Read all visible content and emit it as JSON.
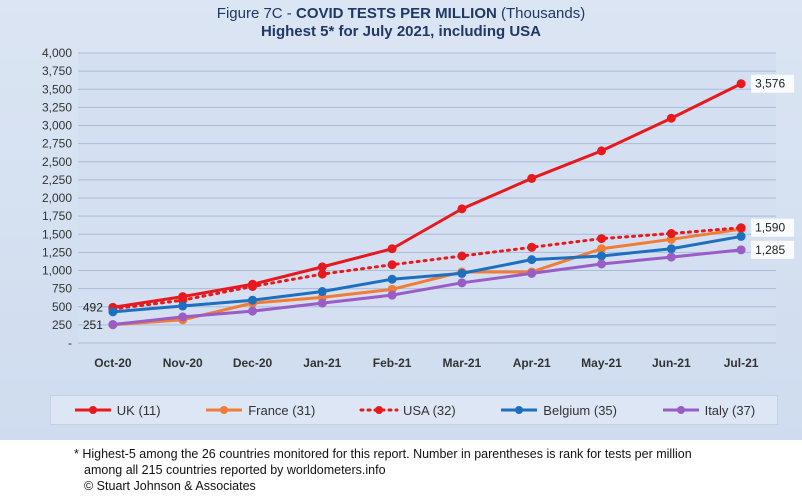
{
  "title": {
    "prefix": "Figure 7C - ",
    "bold": "COVID TESTS PER MILLION",
    "suffix": " (Thousands)",
    "subtitle": "Highest 5* for July 2021, including USA"
  },
  "chart_data": {
    "type": "line",
    "categories": [
      "Oct-20",
      "Nov-20",
      "Dec-20",
      "Jan-21",
      "Feb-21",
      "Mar-21",
      "Apr-21",
      "May-21",
      "Jun-21",
      "Jul-21"
    ],
    "ylim": [
      0,
      4000
    ],
    "yticks": [
      0,
      250,
      500,
      750,
      1000,
      1250,
      1500,
      1750,
      2000,
      2250,
      2500,
      2750,
      3000,
      3250,
      3500,
      3750,
      4000
    ],
    "ytick_labels": [
      "-",
      "250",
      "500",
      "750",
      "1,000",
      "1,250",
      "1,500",
      "1,750",
      "2,000",
      "2,250",
      "2,500",
      "2,750",
      "3,000",
      "3,250",
      "3,500",
      "3,750",
      "4,000"
    ],
    "grid": true,
    "legend_position": "bottom",
    "series": [
      {
        "name": "UK (11)",
        "color": "#e8191c",
        "dash": "solid",
        "values": [
          492,
          640,
          810,
          1050,
          1300,
          1850,
          2270,
          2650,
          3100,
          3576
        ]
      },
      {
        "name": "France (31)",
        "color": "#f07c36",
        "dash": "solid",
        "values": [
          251,
          320,
          550,
          630,
          740,
          980,
          980,
          1300,
          1430,
          1570
        ]
      },
      {
        "name": "USA (32)",
        "color": "#e8191c",
        "dash": "dotted",
        "values": [
          470,
          590,
          780,
          950,
          1080,
          1200,
          1320,
          1440,
          1510,
          1590
        ]
      },
      {
        "name": "Belgium (35)",
        "color": "#1f6fbf",
        "dash": "solid",
        "values": [
          430,
          510,
          590,
          710,
          880,
          960,
          1150,
          1200,
          1300,
          1470
        ]
      },
      {
        "name": "Italy (37)",
        "color": "#9a5cc6",
        "dash": "solid",
        "values": [
          255,
          360,
          440,
          550,
          660,
          830,
          960,
          1090,
          1185,
          1285
        ]
      }
    ],
    "annotations": [
      {
        "text": "492",
        "series": 0,
        "index": 0,
        "side": "left"
      },
      {
        "text": "251",
        "series": 1,
        "index": 0,
        "side": "left"
      },
      {
        "text": "3,576",
        "series": 0,
        "index": 9,
        "side": "right"
      },
      {
        "text": "1,590",
        "series": 2,
        "index": 9,
        "side": "right"
      },
      {
        "text": "1,285",
        "series": 4,
        "index": 9,
        "side": "right"
      }
    ]
  },
  "footnote": {
    "line1": "* Highest-5 among the 26 countries monitored for this report. Number in parentheses is rank for tests per million",
    "line2": "among all 215 countries reported by worldometers.info",
    "line3": "© Stuart Johnson & Associates"
  }
}
